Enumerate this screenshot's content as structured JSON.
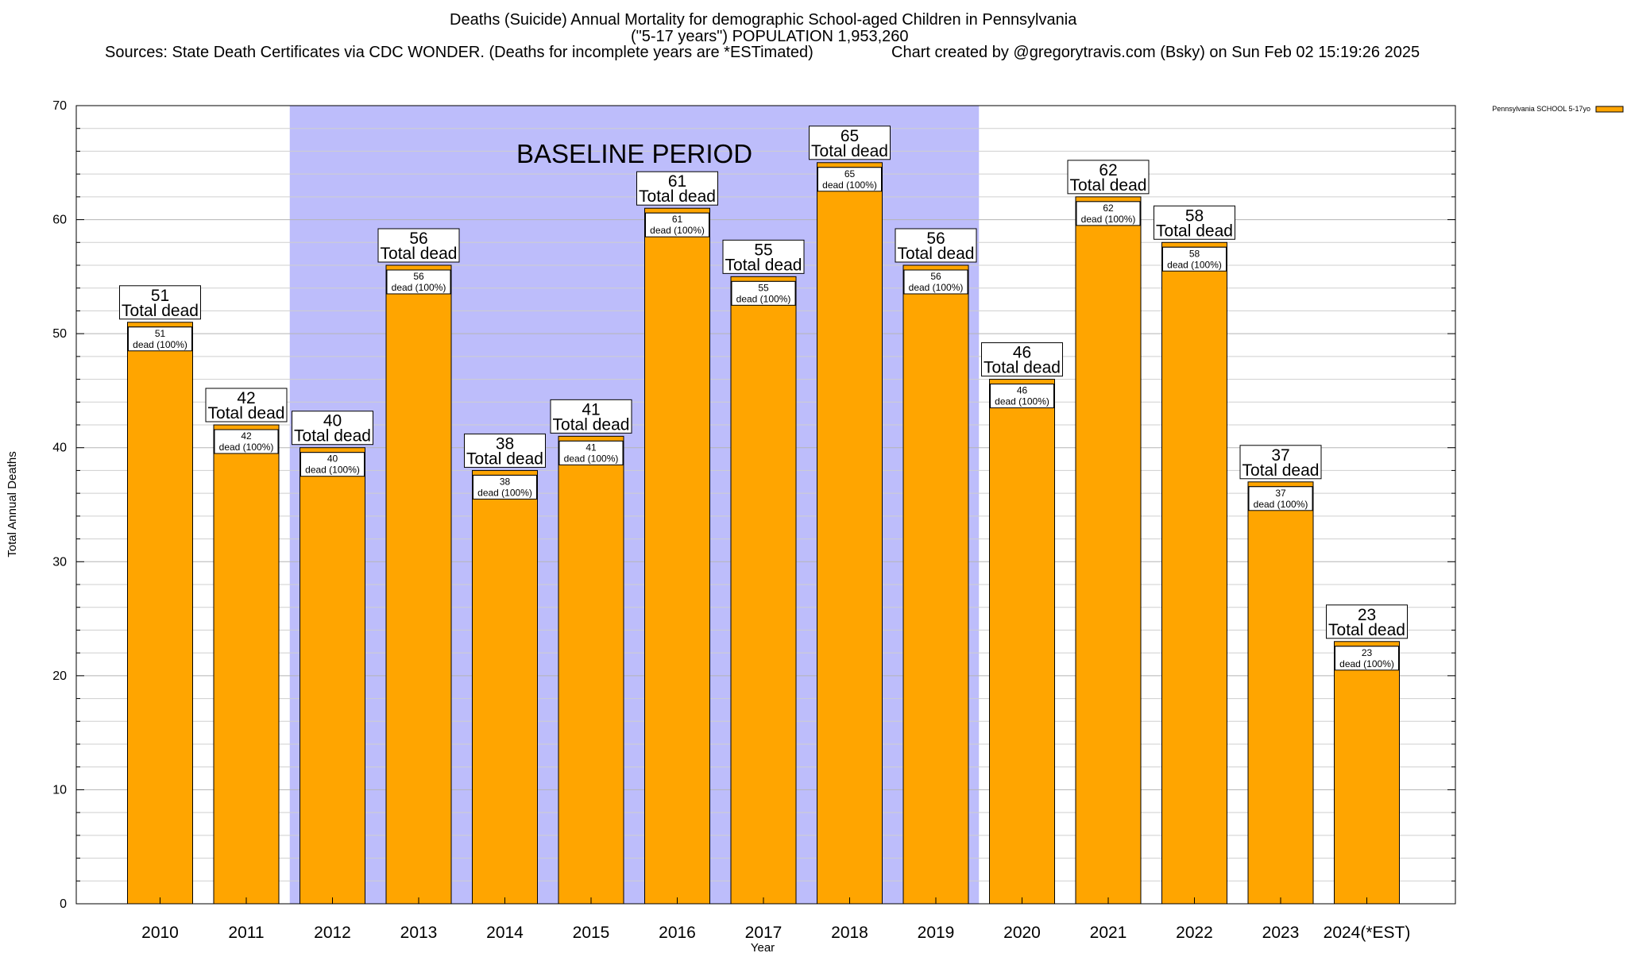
{
  "header": {
    "title_line1": "Deaths (Suicide) Annual Mortality for demographic School-aged Children in Pennsylvania",
    "title_line2": "(\"5-17 years\") POPULATION 1,953,260",
    "sources": "Sources: State Death Certificates via CDC WONDER. (Deaths for incomplete years are *ESTimated)",
    "credit": "Chart created by @gregorytravis.com (Bsky) on Sun Feb 02 15:19:26 2025"
  },
  "chart_data": {
    "type": "bar",
    "title": "Deaths (Suicide) Annual Mortality for demographic School-aged Children in Pennsylvania",
    "xlabel": "Year",
    "ylabel": "Total Annual Deaths",
    "ylim": [
      0,
      70
    ],
    "yticks": [
      0,
      10,
      20,
      30,
      40,
      50,
      60,
      70
    ],
    "y_minor_step": 2,
    "grid": true,
    "legend_position": "top-right",
    "categories": [
      "2010",
      "2011",
      "2012",
      "2013",
      "2014",
      "2015",
      "2016",
      "2017",
      "2018",
      "2019",
      "2020",
      "2021",
      "2022",
      "2023",
      "2024(*EST)"
    ],
    "series": [
      {
        "name": "Pennsylvania SCHOOL 5-17yo",
        "color": "#ffa500",
        "values": [
          51,
          42,
          40,
          56,
          38,
          41,
          61,
          55,
          65,
          56,
          46,
          62,
          58,
          37,
          23
        ]
      }
    ],
    "top_label_text": "Total dead",
    "inner_label_text": "dead (100%)",
    "annotation": {
      "label": "BASELINE PERIOD",
      "start": "2012",
      "end": "2019",
      "color": "#bdbdfb"
    }
  }
}
